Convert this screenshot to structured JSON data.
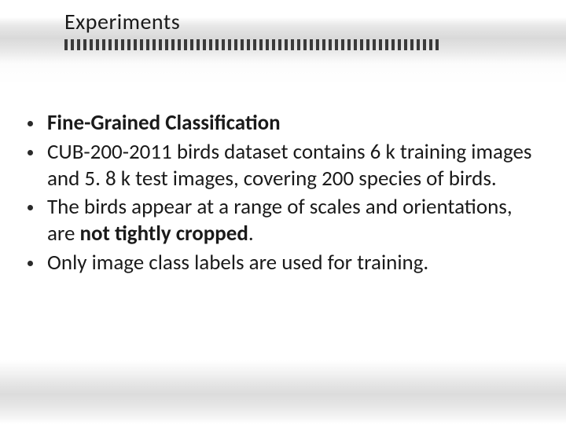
{
  "slide": {
    "title": "Experiments",
    "title_fontsize": 28,
    "title_color": "#1a1a1a",
    "tick_count": 60,
    "tick_color": "#3a3a3a",
    "tick_width": 4,
    "tick_height": 14,
    "tick_gap": 4,
    "background_gradient": [
      "#ffffff",
      "#d9d9d9",
      "#ffffff",
      "#dcdcdc",
      "#ffffff"
    ],
    "bullets": [
      {
        "runs": [
          {
            "text": "Fine-Grained Classification",
            "bold": true
          }
        ]
      },
      {
        "runs": [
          {
            "text": "CUB-200-2011 birds dataset contains 6 k training images and 5. 8 k test images, covering  200 species of birds.",
            "bold": false
          }
        ]
      },
      {
        "runs": [
          {
            "text": "The birds appear at a range of scales and orientations, are ",
            "bold": false
          },
          {
            "text": "not tightly cropped",
            "bold": true
          },
          {
            "text": ".",
            "bold": false
          }
        ]
      },
      {
        "runs": [
          {
            "text": "Only image class labels are used for training.",
            "bold": false
          }
        ]
      }
    ],
    "body_fontsize": 27,
    "body_color": "#1a1a1a",
    "bullet_color": "#2a2a2a"
  }
}
